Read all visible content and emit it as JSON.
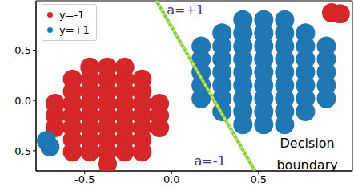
{
  "chart_data": {
    "type": "scatter",
    "xlim": [
      -0.78,
      1.04
    ],
    "ylim": [
      -0.7,
      0.99
    ],
    "xticks": [
      -0.5,
      {
        "value": 0,
        "label": "0.0"
      },
      0.5
    ],
    "yticks": [
      -0.5,
      {
        "value": 0,
        "label": "0.0"
      },
      0.5
    ],
    "legend": "upper left",
    "series": [
      {
        "name": "y=-1",
        "color": "#d62728",
        "marker": "circle",
        "points": [
          [
            -0.37,
            -0.63
          ],
          [
            -0.57,
            -0.51
          ],
          [
            -0.47,
            -0.51
          ],
          [
            -0.37,
            -0.51
          ],
          [
            -0.27,
            -0.51
          ],
          [
            -0.17,
            -0.51
          ],
          [
            -0.57,
            -0.39
          ],
          [
            -0.47,
            -0.39
          ],
          [
            -0.37,
            -0.39
          ],
          [
            -0.27,
            -0.39
          ],
          [
            -0.17,
            -0.39
          ],
          [
            -0.67,
            -0.27
          ],
          [
            -0.57,
            -0.27
          ],
          [
            -0.47,
            -0.27
          ],
          [
            -0.37,
            -0.27
          ],
          [
            -0.27,
            -0.27
          ],
          [
            -0.17,
            -0.27
          ],
          [
            -0.07,
            -0.27
          ],
          [
            -0.67,
            -0.15
          ],
          [
            -0.57,
            -0.15
          ],
          [
            -0.47,
            -0.15
          ],
          [
            -0.37,
            -0.15
          ],
          [
            -0.27,
            -0.15
          ],
          [
            -0.17,
            -0.15
          ],
          [
            -0.07,
            -0.15
          ],
          [
            -0.67,
            -0.03
          ],
          [
            -0.57,
            -0.03
          ],
          [
            -0.47,
            -0.03
          ],
          [
            -0.37,
            -0.03
          ],
          [
            -0.27,
            -0.03
          ],
          [
            -0.17,
            -0.03
          ],
          [
            -0.07,
            -0.03
          ],
          [
            -0.57,
            0.09
          ],
          [
            -0.47,
            0.09
          ],
          [
            -0.37,
            0.09
          ],
          [
            -0.27,
            0.09
          ],
          [
            -0.17,
            0.09
          ],
          [
            -0.57,
            0.21
          ],
          [
            -0.47,
            0.21
          ],
          [
            -0.37,
            0.21
          ],
          [
            -0.27,
            0.21
          ],
          [
            -0.17,
            0.21
          ],
          [
            -0.47,
            0.33
          ],
          [
            -0.37,
            0.33
          ],
          [
            -0.27,
            0.33
          ],
          [
            0.92,
            0.87
          ],
          [
            0.97,
            0.86
          ]
        ]
      },
      {
        "name": "y=+1",
        "color": "#1f77b4",
        "marker": "circle",
        "points": [
          [
            0.41,
            -0.24
          ],
          [
            0.53,
            -0.24
          ],
          [
            0.65,
            -0.24
          ],
          [
            0.29,
            -0.11
          ],
          [
            0.41,
            -0.11
          ],
          [
            0.53,
            -0.11
          ],
          [
            0.65,
            -0.11
          ],
          [
            0.77,
            -0.11
          ],
          [
            0.17,
            0.02
          ],
          [
            0.29,
            0.02
          ],
          [
            0.41,
            0.02
          ],
          [
            0.53,
            0.02
          ],
          [
            0.65,
            0.02
          ],
          [
            0.77,
            0.02
          ],
          [
            0.89,
            0.02
          ],
          [
            0.17,
            0.15
          ],
          [
            0.29,
            0.15
          ],
          [
            0.41,
            0.15
          ],
          [
            0.53,
            0.15
          ],
          [
            0.65,
            0.15
          ],
          [
            0.77,
            0.15
          ],
          [
            0.89,
            0.15
          ],
          [
            0.17,
            0.28
          ],
          [
            0.29,
            0.28
          ],
          [
            0.41,
            0.28
          ],
          [
            0.53,
            0.28
          ],
          [
            0.65,
            0.28
          ],
          [
            0.77,
            0.28
          ],
          [
            0.89,
            0.28
          ],
          [
            0.17,
            0.41
          ],
          [
            0.29,
            0.41
          ],
          [
            0.41,
            0.41
          ],
          [
            0.53,
            0.41
          ],
          [
            0.65,
            0.41
          ],
          [
            0.77,
            0.41
          ],
          [
            0.89,
            0.41
          ],
          [
            0.17,
            0.54
          ],
          [
            0.29,
            0.54
          ],
          [
            0.41,
            0.54
          ],
          [
            0.53,
            0.54
          ],
          [
            0.65,
            0.54
          ],
          [
            0.77,
            0.54
          ],
          [
            0.89,
            0.54
          ],
          [
            0.29,
            0.67
          ],
          [
            0.41,
            0.67
          ],
          [
            0.53,
            0.67
          ],
          [
            0.65,
            0.67
          ],
          [
            0.77,
            0.67
          ],
          [
            0.41,
            0.8
          ],
          [
            0.53,
            0.8
          ],
          [
            0.65,
            0.8
          ],
          [
            -0.72,
            -0.4
          ],
          [
            -0.7,
            -0.46
          ]
        ]
      }
    ],
    "boundary": {
      "x": [
        -0.087,
        0.48
      ],
      "y": [
        0.99,
        -0.7
      ],
      "color": "#7ad151",
      "line_style": "dashed"
    },
    "annotations": [
      {
        "text": "a=+1",
        "x": 0.08,
        "y": 0.9,
        "color": "#4b2c83"
      },
      {
        "text": "a=-1",
        "x": 0.22,
        "y": -0.6,
        "color": "#4b2c83"
      },
      {
        "text": "Decision boundary",
        "x": 0.78,
        "y": -0.53,
        "color": "#000000"
      }
    ]
  }
}
